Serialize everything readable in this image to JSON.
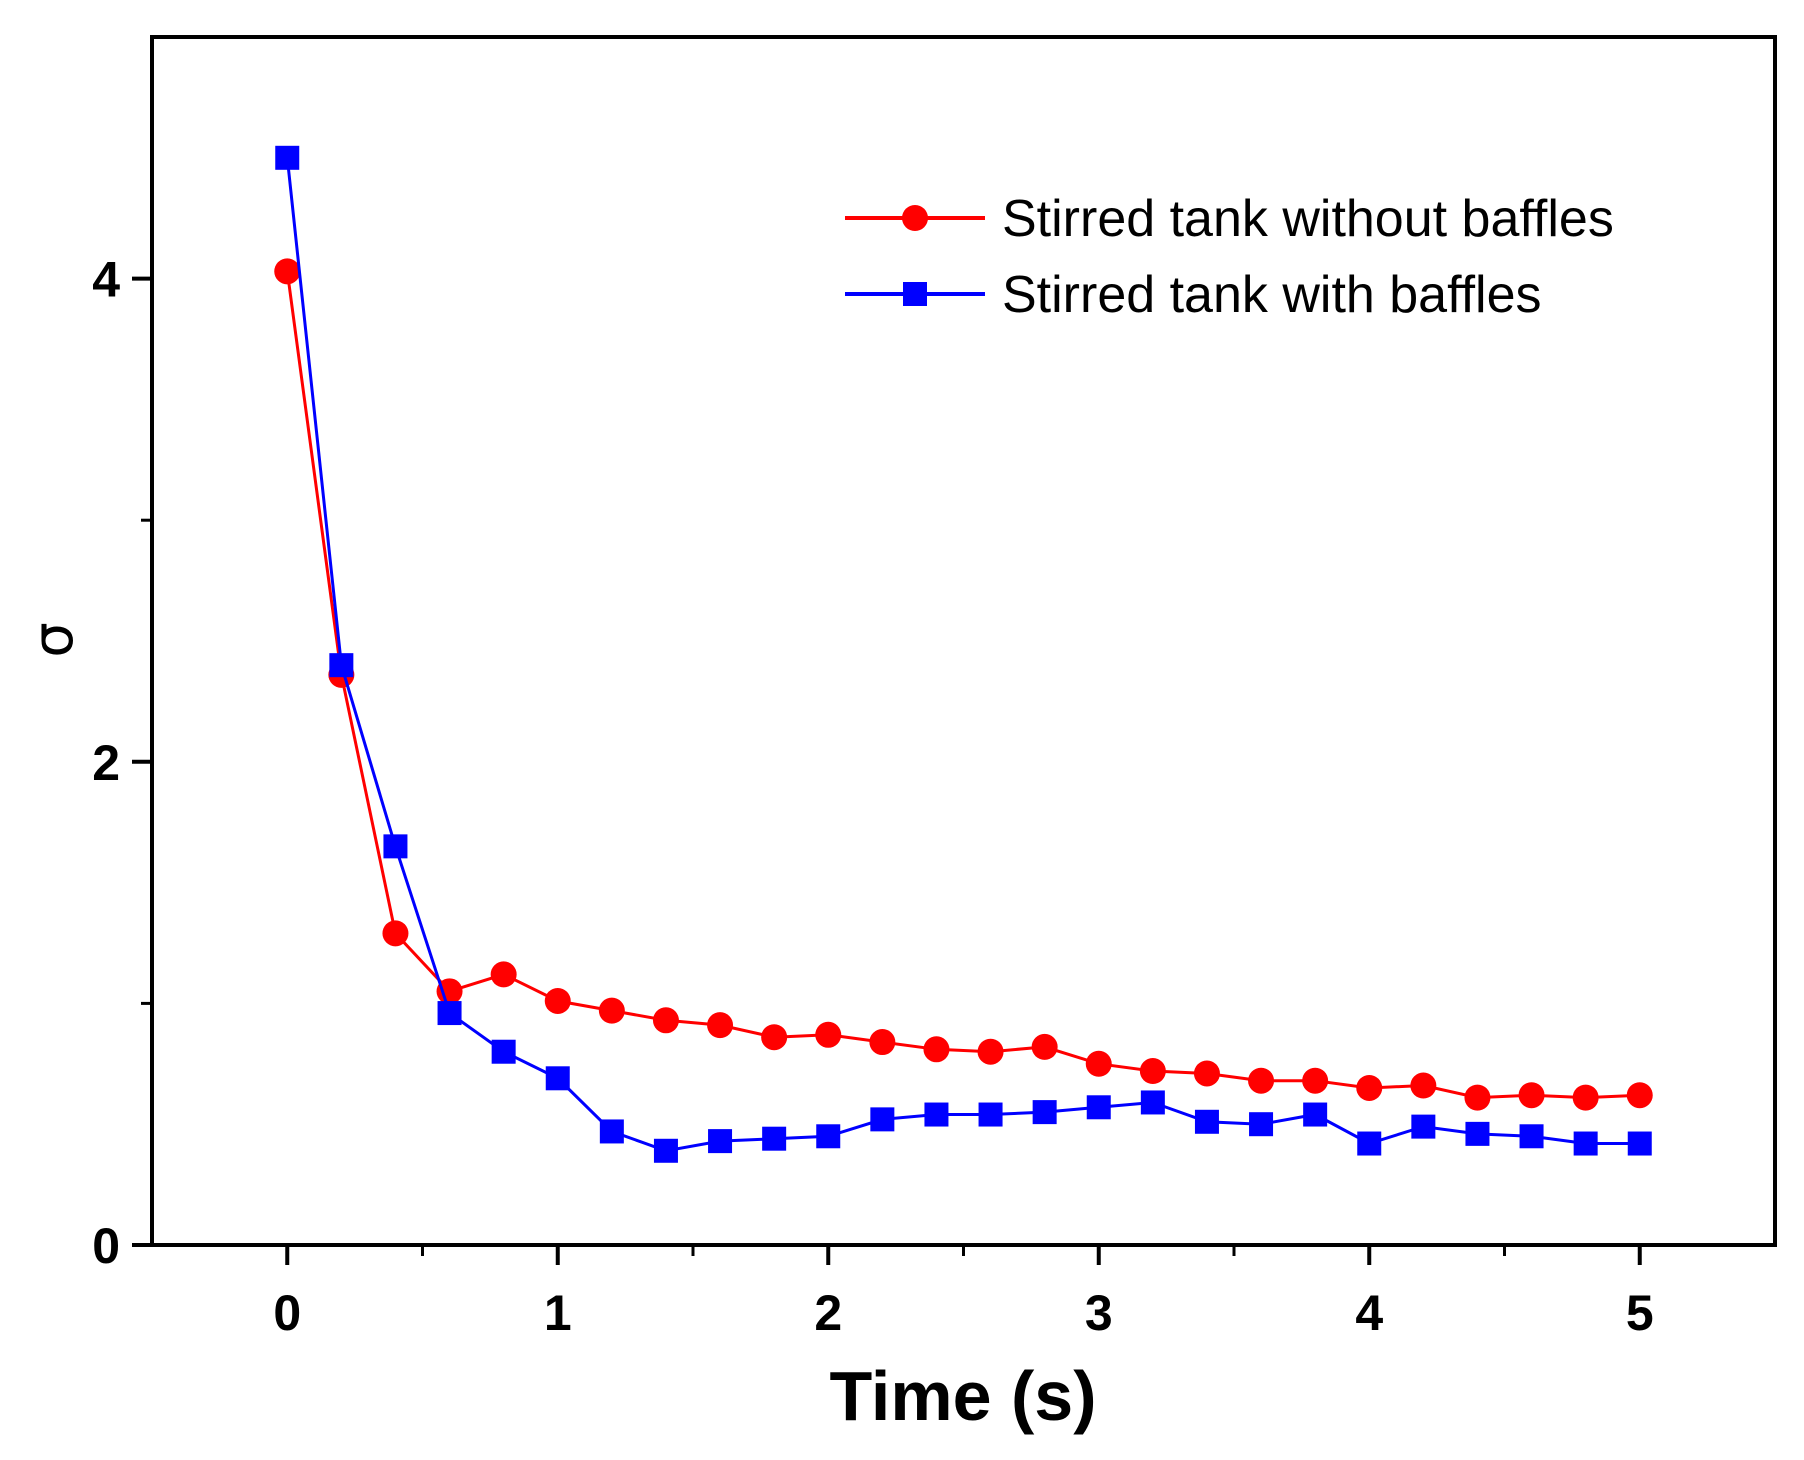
{
  "chart_data": {
    "type": "line",
    "title": "",
    "xlabel": "Time (s)",
    "ylabel": "σ",
    "xlim": [
      -0.5,
      5.5
    ],
    "ylim": [
      0,
      5
    ],
    "x_ticks_major": [
      0,
      1,
      2,
      3,
      4,
      5
    ],
    "x_ticks_minor": [
      0.5,
      1.5,
      2.5,
      3.5,
      4.5
    ],
    "y_ticks_major": [
      0,
      2,
      4
    ],
    "y_ticks_minor": [
      1,
      3
    ],
    "x_tick_labels": [
      "0",
      "1",
      "2",
      "3",
      "4",
      "5"
    ],
    "y_tick_labels": [
      "0",
      "2",
      "4"
    ],
    "legend_position": "top-right",
    "grid": false,
    "series": [
      {
        "name": "Stirred tank without baffles",
        "color": "#ff0000",
        "marker": "circle",
        "x": [
          0,
          0.2,
          0.4,
          0.6,
          0.8,
          1.0,
          1.2,
          1.4,
          1.6,
          1.8,
          2.0,
          2.2,
          2.4,
          2.6,
          2.8,
          3.0,
          3.2,
          3.4,
          3.6,
          3.8,
          4.0,
          4.2,
          4.4,
          4.6,
          4.8,
          5.0
        ],
        "y": [
          4.03,
          2.36,
          1.29,
          1.05,
          1.12,
          1.01,
          0.97,
          0.93,
          0.91,
          0.86,
          0.87,
          0.84,
          0.81,
          0.8,
          0.82,
          0.75,
          0.72,
          0.71,
          0.68,
          0.68,
          0.65,
          0.66,
          0.61,
          0.62,
          0.61,
          0.62
        ]
      },
      {
        "name": "Stirred tank with baffles",
        "color": "#0000ff",
        "marker": "square",
        "x": [
          0,
          0.2,
          0.4,
          0.6,
          0.8,
          1.0,
          1.2,
          1.4,
          1.6,
          1.8,
          2.0,
          2.2,
          2.4,
          2.6,
          2.8,
          3.0,
          3.2,
          3.4,
          3.6,
          3.8,
          4.0,
          4.2,
          4.4,
          4.6,
          4.8,
          5.0
        ],
        "y": [
          4.5,
          2.4,
          1.65,
          0.96,
          0.8,
          0.69,
          0.47,
          0.39,
          0.43,
          0.44,
          0.45,
          0.52,
          0.54,
          0.54,
          0.55,
          0.57,
          0.59,
          0.51,
          0.5,
          0.54,
          0.42,
          0.49,
          0.46,
          0.45,
          0.42,
          0.42
        ]
      }
    ]
  }
}
